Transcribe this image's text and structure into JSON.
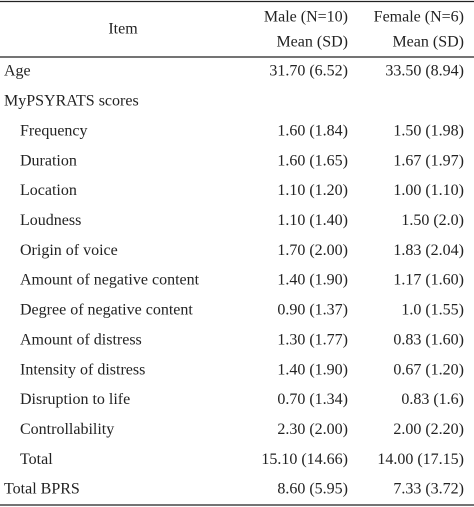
{
  "table": {
    "header": {
      "item": "Item",
      "male": [
        "Male (N=10)",
        "Mean (SD)"
      ],
      "female": [
        "Female (N=6)",
        "Mean (SD)"
      ]
    },
    "rows": [
      [
        "Age",
        "31.70 (6.52)",
        "33.50 (8.94)"
      ],
      {
        "label": "MyPSYRATS scores",
        "rows": [
          [
            "Frequency",
            "1.60 (1.84)",
            "1.50 (1.98)"
          ],
          [
            "Duration",
            "1.60 (1.65)",
            "1.67 (1.97)"
          ],
          [
            "Location",
            "1.10 (1.20)",
            "1.00 (1.10)"
          ],
          [
            "Loudness",
            "1.10 (1.40)",
            "1.50 (2.0)"
          ],
          [
            "Origin of voice",
            "1.70 (2.00)",
            "1.83 (2.04)"
          ],
          [
            "Amount of negative content",
            "1.40 (1.90)",
            "1.17 (1.60)"
          ],
          [
            "Degree of negative content",
            "0.90 (1.37)",
            "1.0 (1.55)"
          ],
          [
            "Amount of distress",
            "1.30 (1.77)",
            "0.83 (1.60)"
          ],
          [
            "Intensity of distress",
            "1.40 (1.90)",
            "0.67 (1.20)"
          ],
          [
            "Disruption to life",
            "0.70 (1.34)",
            "0.83 (1.6)"
          ],
          [
            "Controllability",
            "2.30 (2.00)",
            "2.00 (2.20)"
          ],
          [
            "Total",
            "15.10 (14.66)",
            "14.00 (17.15)"
          ]
        ]
      },
      [
        "Total BPRS",
        "8.60 (5.95)",
        "7.33 (3.72)"
      ]
    ]
  }
}
